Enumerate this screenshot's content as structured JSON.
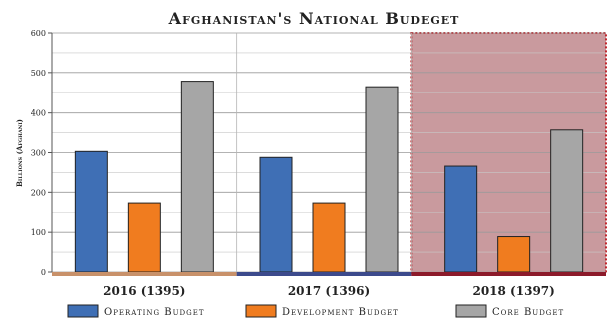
{
  "chart_data": {
    "type": "bar",
    "title": "Afghanistan's National Budeget",
    "ylabel": "Billions (Afghani)",
    "xlabel": "",
    "ylim": [
      0,
      600
    ],
    "yticks": [
      "0",
      "100",
      "200",
      "300",
      "400",
      "500",
      "600"
    ],
    "categories": [
      "2016 (1395)",
      "2017 (1396)",
      "2018 (1397)"
    ],
    "series": [
      {
        "name": "Operating Budget",
        "values": [
          303,
          288,
          266
        ],
        "color": "#3f6fb5"
      },
      {
        "name": "Development Budget",
        "values": [
          173,
          173,
          89
        ],
        "color": "#f07c1f"
      },
      {
        "name": "Core Budget",
        "values": [
          478,
          464,
          357
        ],
        "color": "#a6a6a6"
      }
    ],
    "category_band_colors": [
      "#c8916a",
      "#3c4a8c",
      "#8c1a2a"
    ],
    "highlight": {
      "category": "2018 (1397)",
      "fill": "#c99a9e",
      "border": "#c0282e"
    },
    "grid": true,
    "legend": "bottom"
  }
}
